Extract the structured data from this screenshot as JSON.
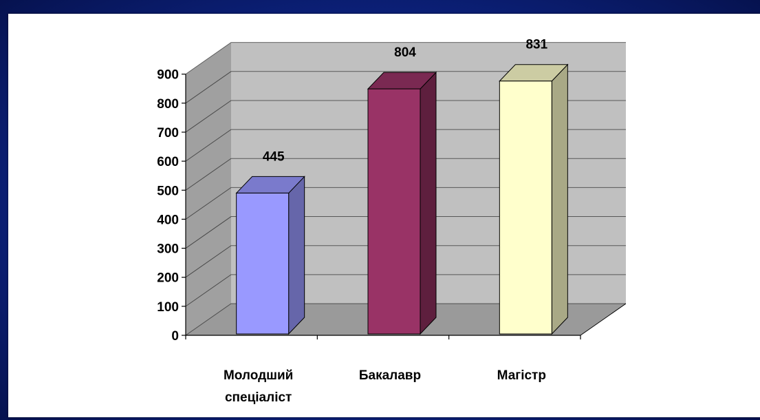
{
  "chart_data": {
    "type": "bar",
    "categories": [
      [
        "Молодший",
        "спеціаліст"
      ],
      [
        "Бакалавр"
      ],
      [
        "Магістр"
      ]
    ],
    "values": [
      445,
      804,
      831
    ],
    "data_labels": [
      "445",
      "804",
      "831"
    ],
    "y_ticks": [
      "0",
      "100",
      "200",
      "300",
      "400",
      "500",
      "600",
      "700",
      "800",
      "900"
    ],
    "ylim": [
      0,
      900
    ],
    "grid": true,
    "three_d": true,
    "colors": {
      "bars": [
        {
          "front": "#9999ff",
          "side": "#6666aa",
          "top": "#7a7acc"
        },
        {
          "front": "#993366",
          "side": "#5e1f3e",
          "top": "#7a2952"
        },
        {
          "front": "#ffffcc",
          "side": "#a9a986",
          "top": "#cccca3"
        }
      ],
      "back_wall": "#c0c0c0",
      "side_wall": "#a0a0a0",
      "floor": "#9a9a9a"
    }
  }
}
